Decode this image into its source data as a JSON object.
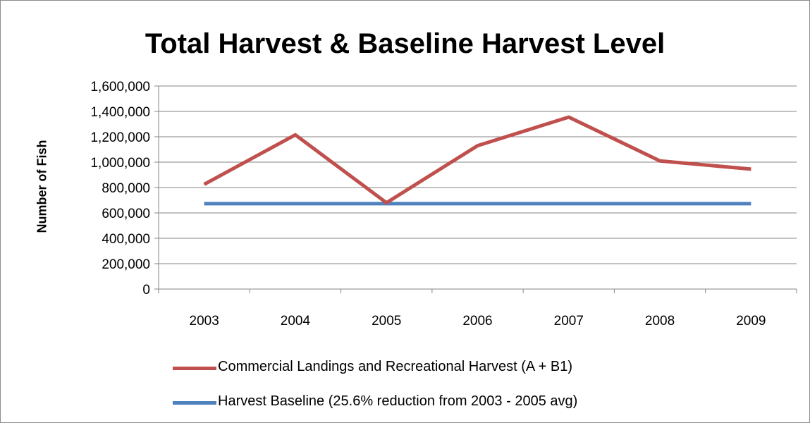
{
  "chart_data": {
    "type": "line",
    "title": "Total Harvest & Baseline Harvest Level",
    "xlabel": "",
    "ylabel": "Number of Fish",
    "categories": [
      "2003",
      "2004",
      "2005",
      "2006",
      "2007",
      "2008",
      "2009"
    ],
    "ylim": [
      0,
      1600000
    ],
    "yticks": [
      0,
      200000,
      400000,
      600000,
      800000,
      1000000,
      1200000,
      1400000,
      1600000
    ],
    "ytick_labels": [
      "0",
      "200,000",
      "400,000",
      "600,000",
      "800,000",
      "1,000,000",
      "1,200,000",
      "1,400,000",
      "1,600,000"
    ],
    "grid": "horizontal",
    "legend_position": "bottom",
    "series": [
      {
        "name": "Commercial Landings and Recreational Harvest (A + B1)",
        "color": "#c0504d",
        "values": [
          825000,
          1215000,
          680000,
          1130000,
          1355000,
          1010000,
          945000
        ]
      },
      {
        "name": "Harvest Baseline (25.6% reduction from 2003 - 2005 avg)",
        "color": "#4f81bd",
        "values": [
          673000,
          673000,
          673000,
          673000,
          673000,
          673000,
          673000
        ]
      }
    ]
  }
}
